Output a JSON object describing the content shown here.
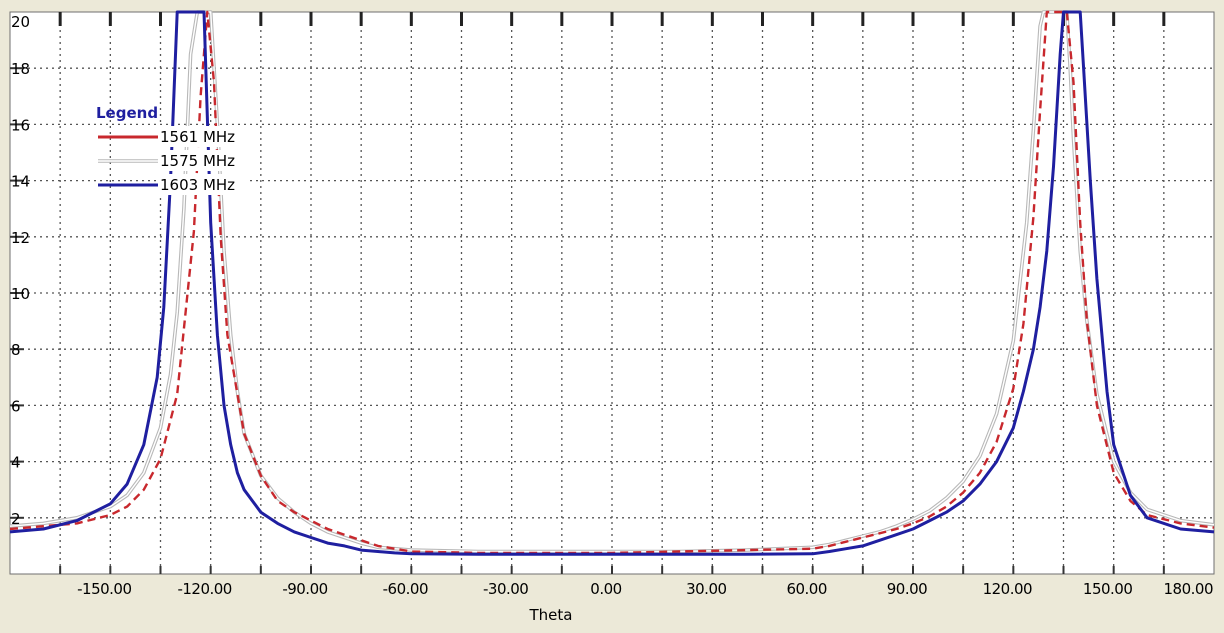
{
  "chart_data": {
    "type": "line",
    "xlabel": "Theta",
    "ylabel": "",
    "xlim": [
      -180,
      180
    ],
    "ylim": [
      0,
      20
    ],
    "grid": true,
    "x_ticks": [
      -150,
      -120,
      -90,
      -60,
      -30,
      0,
      30,
      60,
      90,
      120,
      150,
      180
    ],
    "x_tick_labels": [
      "-150.00",
      "-120.00",
      "-90.00",
      "-60.00",
      "-30.00",
      "0.00",
      "30.00",
      "60.00",
      "90.00",
      "120.00",
      "150.00",
      "180.00"
    ],
    "y_ticks": [
      2,
      4,
      6,
      8,
      10,
      12,
      14,
      16,
      18,
      20
    ],
    "y_tick_labels": [
      "2",
      "4",
      "6",
      "8",
      "10",
      "12",
      "14",
      "16",
      "18",
      "20"
    ],
    "legend": {
      "title": "Legend",
      "placement": "top-left",
      "entries": [
        "1561 MHz",
        "1575 MHz",
        "1603 MHz"
      ]
    },
    "series": [
      {
        "name": "1561 MHz",
        "color": "#c8282d",
        "dash": true,
        "x": [
          -180,
          -170,
          -160,
          -150,
          -145,
          -140,
          -135,
          -130,
          -125,
          -123,
          -121,
          -119,
          -117,
          -115,
          -110,
          -105,
          -100,
          -95,
          -90,
          -85,
          -80,
          -75,
          -70,
          -65,
          -60,
          -40,
          -20,
          0,
          20,
          40,
          60,
          65,
          70,
          75,
          80,
          85,
          90,
          95,
          100,
          105,
          110,
          115,
          120,
          123,
          126,
          128,
          130,
          132,
          134,
          135,
          136,
          138,
          140,
          142,
          145,
          150,
          155,
          160,
          170,
          180
        ],
        "y": [
          1.6,
          1.7,
          1.8,
          2.1,
          2.4,
          3.0,
          4.1,
          6.4,
          12.2,
          17.0,
          20,
          17.5,
          12.0,
          8.5,
          5.0,
          3.5,
          2.6,
          2.2,
          1.9,
          1.6,
          1.4,
          1.2,
          1.0,
          0.9,
          0.8,
          0.75,
          0.75,
          0.75,
          0.8,
          0.85,
          0.9,
          1.0,
          1.15,
          1.3,
          1.45,
          1.6,
          1.8,
          2.05,
          2.4,
          2.9,
          3.6,
          4.7,
          6.6,
          8.9,
          12.7,
          16.5,
          20,
          20,
          20,
          20,
          20,
          17.5,
          12.5,
          9.0,
          6.0,
          3.6,
          2.6,
          2.1,
          1.8,
          1.65
        ]
      },
      {
        "name": "1575 MHz",
        "color": "#a0a0a0",
        "dash": false,
        "x": [
          -180,
          -170,
          -160,
          -150,
          -145,
          -140,
          -135,
          -132,
          -130,
          -128,
          -126,
          -124,
          -122,
          -120,
          -118,
          -116,
          -114,
          -112,
          -110,
          -105,
          -100,
          -95,
          -90,
          -85,
          -80,
          -75,
          -70,
          -65,
          -60,
          -40,
          -20,
          0,
          20,
          40,
          60,
          65,
          70,
          75,
          80,
          85,
          90,
          95,
          100,
          105,
          110,
          115,
          120,
          124,
          126,
          128,
          129,
          130,
          132,
          134,
          135,
          136,
          137,
          138,
          140,
          142,
          145,
          150,
          155,
          160,
          170,
          180
        ],
        "y": [
          1.7,
          1.8,
          2.0,
          2.4,
          2.8,
          3.6,
          5.2,
          7.1,
          9.3,
          13.0,
          18.5,
          20,
          20,
          20,
          16.0,
          11.5,
          8.5,
          6.5,
          5.0,
          3.5,
          2.7,
          2.2,
          1.8,
          1.5,
          1.3,
          1.1,
          0.95,
          0.9,
          0.85,
          0.8,
          0.8,
          0.8,
          0.8,
          0.85,
          0.95,
          1.05,
          1.2,
          1.35,
          1.5,
          1.7,
          1.95,
          2.25,
          2.7,
          3.3,
          4.2,
          5.7,
          8.3,
          12.5,
          15.8,
          19.5,
          20,
          20,
          20,
          20,
          20,
          20,
          18.0,
          15.5,
          11.5,
          9.0,
          6.4,
          4.0,
          2.9,
          2.3,
          1.9,
          1.75
        ]
      },
      {
        "name": "1603 MHz",
        "color": "#1f1fa0",
        "dash": false,
        "x": [
          -180,
          -170,
          -160,
          -150,
          -145,
          -140,
          -136,
          -134,
          -132,
          -130,
          -128,
          -126,
          -124,
          -122,
          -120,
          -118,
          -116,
          -114,
          -112,
          -110,
          -105,
          -100,
          -95,
          -90,
          -85,
          -80,
          -75,
          -70,
          -65,
          -60,
          -40,
          -20,
          0,
          20,
          40,
          60,
          65,
          70,
          75,
          80,
          85,
          90,
          95,
          100,
          105,
          110,
          115,
          120,
          123,
          126,
          128,
          130,
          132,
          134,
          135,
          136,
          138,
          140,
          141,
          143,
          145,
          148,
          150,
          155,
          160,
          170,
          180
        ],
        "y": [
          1.5,
          1.6,
          1.9,
          2.5,
          3.2,
          4.6,
          7.0,
          9.5,
          14.0,
          20,
          20,
          20,
          20,
          20,
          12.5,
          8.5,
          6.0,
          4.6,
          3.6,
          3.0,
          2.2,
          1.8,
          1.5,
          1.3,
          1.1,
          1.0,
          0.85,
          0.8,
          0.75,
          0.72,
          0.7,
          0.7,
          0.7,
          0.7,
          0.7,
          0.72,
          0.8,
          0.9,
          1.0,
          1.2,
          1.4,
          1.6,
          1.9,
          2.2,
          2.6,
          3.2,
          4.0,
          5.2,
          6.5,
          8.0,
          9.5,
          11.5,
          14.5,
          18.5,
          20,
          20,
          20,
          20,
          18.0,
          14.0,
          10.5,
          6.5,
          4.6,
          2.8,
          2.0,
          1.6,
          1.5
        ]
      }
    ]
  }
}
